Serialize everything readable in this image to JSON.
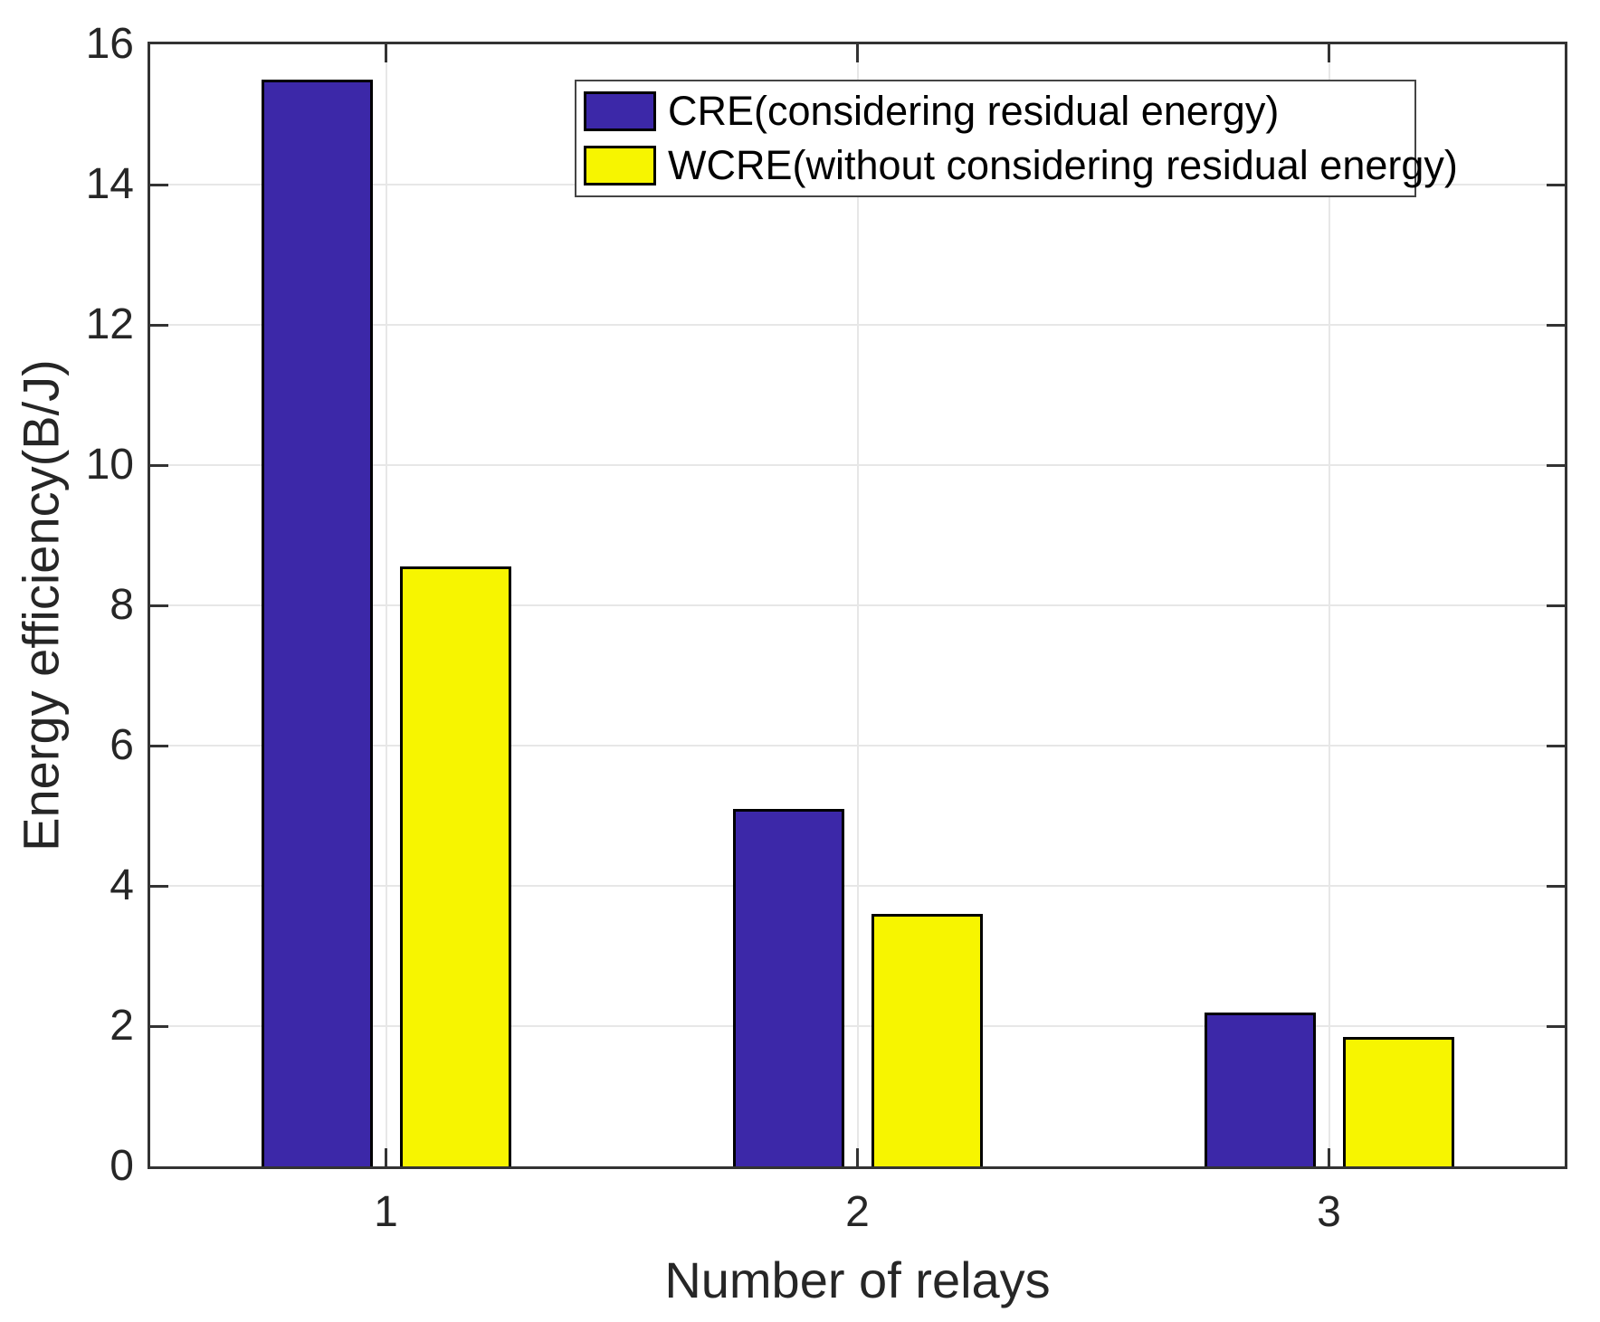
{
  "chart_data": {
    "type": "bar",
    "title": "",
    "xlabel": "Number of relays",
    "ylabel": "Energy efficiency(B/J)",
    "categories": [
      "1",
      "2",
      "3"
    ],
    "series": [
      {
        "name": "CRE(considering residual energy)",
        "color": "#3C28A8",
        "values": [
          15.5,
          5.1,
          2.2
        ]
      },
      {
        "name": "WCRE(without considering residual energy)",
        "color": "#F7F500",
        "values": [
          8.55,
          3.6,
          1.85
        ]
      }
    ],
    "ylim": [
      0,
      16
    ],
    "yticks": [
      0,
      2,
      4,
      6,
      8,
      10,
      12,
      14,
      16
    ],
    "grid": true,
    "legend_position": "top-center",
    "bar_edge_color": "#000000",
    "axis_color": "#333333",
    "grid_color": "#E7E7E7",
    "text_color": "#262626",
    "background": "#FFFFFF"
  }
}
